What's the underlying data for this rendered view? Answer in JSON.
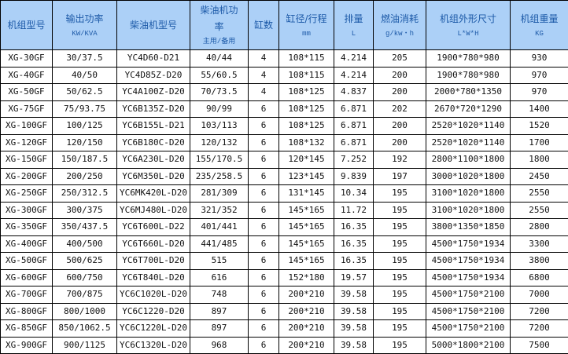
{
  "headers": [
    {
      "title": "机组型号",
      "sub": ""
    },
    {
      "title": "输出功率",
      "sub": "KW/KVA"
    },
    {
      "title": "柴油机型号",
      "sub": ""
    },
    {
      "title": "柴油机功率",
      "sub": "主用/备用"
    },
    {
      "title": "缸数",
      "sub": ""
    },
    {
      "title": "缸径/行程",
      "sub": "mm"
    },
    {
      "title": "排量",
      "sub": "L"
    },
    {
      "title": "燃油消耗",
      "sub": "g/kw・h"
    },
    {
      "title": "机组外形尺寸",
      "sub": "L*W*H"
    },
    {
      "title": "机组重量",
      "sub": "KG"
    }
  ],
  "rows": [
    [
      "XG-30GF",
      "30/37.5",
      "YC4D60-D21",
      "40/44",
      "4",
      "108*115",
      "4.214",
      "205",
      "1900*780*980",
      "930"
    ],
    [
      "XG-40GF",
      "40/50",
      "YC4D85Z-D20",
      "55/60.5",
      "4",
      "108*115",
      "4.214",
      "200",
      "1900*780*980",
      "970"
    ],
    [
      "XG-50GF",
      "50/62.5",
      "YC4A100Z-D20",
      "70/73.5",
      "4",
      "108*125",
      "4.837",
      "200",
      "2000*780*1350",
      "970"
    ],
    [
      "XG-75GF",
      "75/93.75",
      "YC6B135Z-D20",
      "90/99",
      "6",
      "108*125",
      "6.871",
      "202",
      "2670*720*1290",
      "1400"
    ],
    [
      "XG-100GF",
      "100/125",
      "YC6B155L-D21",
      "103/113",
      "6",
      "108*125",
      "6.871",
      "200",
      "2520*1020*1140",
      "1520"
    ],
    [
      "XG-120GF",
      "120/150",
      "YC6B180C-D20",
      "120/132",
      "6",
      "108*132",
      "6.871",
      "200",
      "2520*1020*1140",
      "1700"
    ],
    [
      "XG-150GF",
      "150/187.5",
      "YC6A230L-D20",
      "155/170.5",
      "6",
      "120*145",
      "7.252",
      "192",
      "2800*1100*1800",
      "1800"
    ],
    [
      "XG-200GF",
      "200/250",
      "YC6M350L-D20",
      "235/258.5",
      "6",
      "123*145",
      "9.839",
      "197",
      "3000*1020*1800",
      "2450"
    ],
    [
      "XG-250GF",
      "250/312.5",
      "YC6MK420L-D20",
      "281/309",
      "6",
      "131*145",
      "10.34",
      "195",
      "3100*1020*1800",
      "2550"
    ],
    [
      "XG-300GF",
      "300/375",
      "YC6MJ480L-D20",
      "321/352",
      "6",
      "145*165",
      "11.72",
      "195",
      "3100*1020*1800",
      "2550"
    ],
    [
      "XG-350GF",
      "350/437.5",
      "YC6T600L-D22",
      "401/441",
      "6",
      "145*165",
      "16.35",
      "195",
      "3800*1350*1850",
      "2800"
    ],
    [
      "XG-400GF",
      "400/500",
      "YC6T660L-D20",
      "441/485",
      "6",
      "145*165",
      "16.35",
      "195",
      "4500*1750*1934",
      "3300"
    ],
    [
      "XG-500GF",
      "500/625",
      "YC6T700L-D20",
      "515",
      "6",
      "145*165",
      "16.35",
      "195",
      "4500*1750*1934",
      "3800"
    ],
    [
      "XG-600GF",
      "600/750",
      "YC6T840L-D20",
      "616",
      "6",
      "152*180",
      "19.57",
      "195",
      "4500*1750*1934",
      "6800"
    ],
    [
      "XG-700GF",
      "700/875",
      "YC6C1020L-D20",
      "748",
      "6",
      "200*210",
      "39.58",
      "195",
      "4500*1750*2100",
      "7000"
    ],
    [
      "XG-800GF",
      "800/1000",
      "YC6C1220-D20",
      "897",
      "6",
      "200*210",
      "39.58",
      "195",
      "4500*1750*2100",
      "7200"
    ],
    [
      "XG-850GF",
      "850/1062.5",
      "YC6C1220L-D20",
      "897",
      "6",
      "200*210",
      "39.58",
      "195",
      "4500*1750*2100",
      "7200"
    ],
    [
      "XG-900GF",
      "900/1125",
      "YC6C1320L-D20",
      "968",
      "6",
      "200*210",
      "39.58",
      "195",
      "5000*1800*2100",
      "7500"
    ]
  ]
}
